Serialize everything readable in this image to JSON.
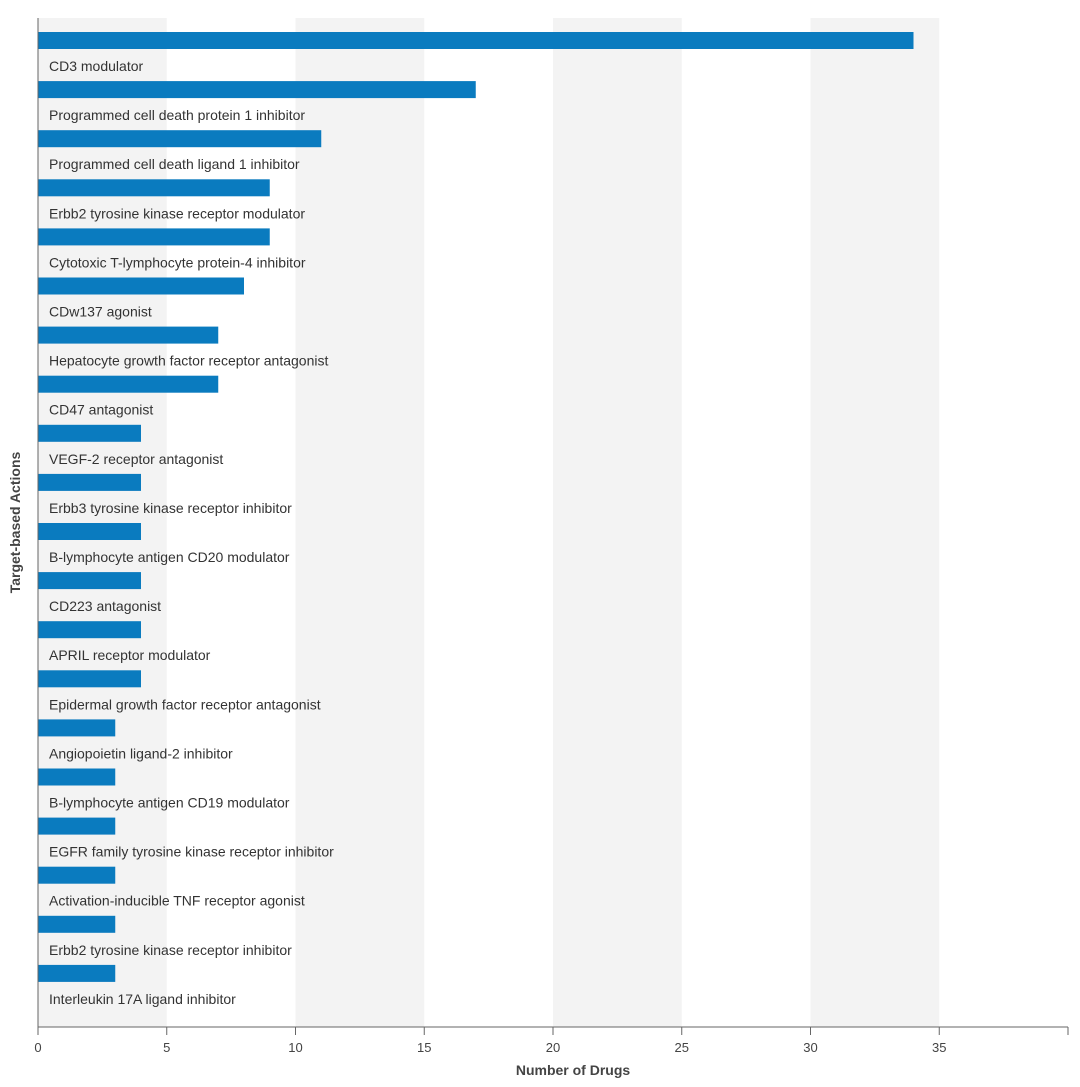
{
  "chart_data": {
    "type": "bar",
    "orientation": "horizontal",
    "xlabel": "Number of Drugs",
    "ylabel": "Target-based Actions",
    "xlim": [
      0,
      40
    ],
    "xticks": [
      0,
      5,
      10,
      15,
      20,
      25,
      30,
      35
    ],
    "grid": "alternating vertical bands",
    "categories": [
      "CD3 modulator",
      "Programmed cell death protein 1 inhibitor",
      "Programmed cell death ligand 1 inhibitor",
      "Erbb2 tyrosine kinase receptor modulator",
      "Cytotoxic T-lymphocyte protein-4 inhibitor",
      "CDw137 agonist",
      "Hepatocyte growth factor receptor antagonist",
      "CD47 antagonist",
      "VEGF-2 receptor antagonist",
      "Erbb3 tyrosine kinase receptor inhibitor",
      "B-lymphocyte antigen CD20 modulator",
      "CD223 antagonist",
      "APRIL receptor modulator",
      "Epidermal growth factor receptor antagonist",
      "Angiopoietin ligand-2 inhibitor",
      "B-lymphocyte antigen CD19 modulator",
      "EGFR family tyrosine kinase receptor inhibitor",
      "Activation-inducible TNF receptor agonist",
      "Erbb2 tyrosine kinase receptor inhibitor",
      "Interleukin 17A ligand inhibitor"
    ],
    "values": [
      34,
      17,
      11,
      9,
      9,
      8,
      7,
      7,
      4,
      4,
      4,
      4,
      4,
      4,
      3,
      3,
      3,
      3,
      3,
      3
    ]
  },
  "colors": {
    "bar": "#0a7bbf",
    "band": "#f3f3f3",
    "axis": "#666666"
  }
}
